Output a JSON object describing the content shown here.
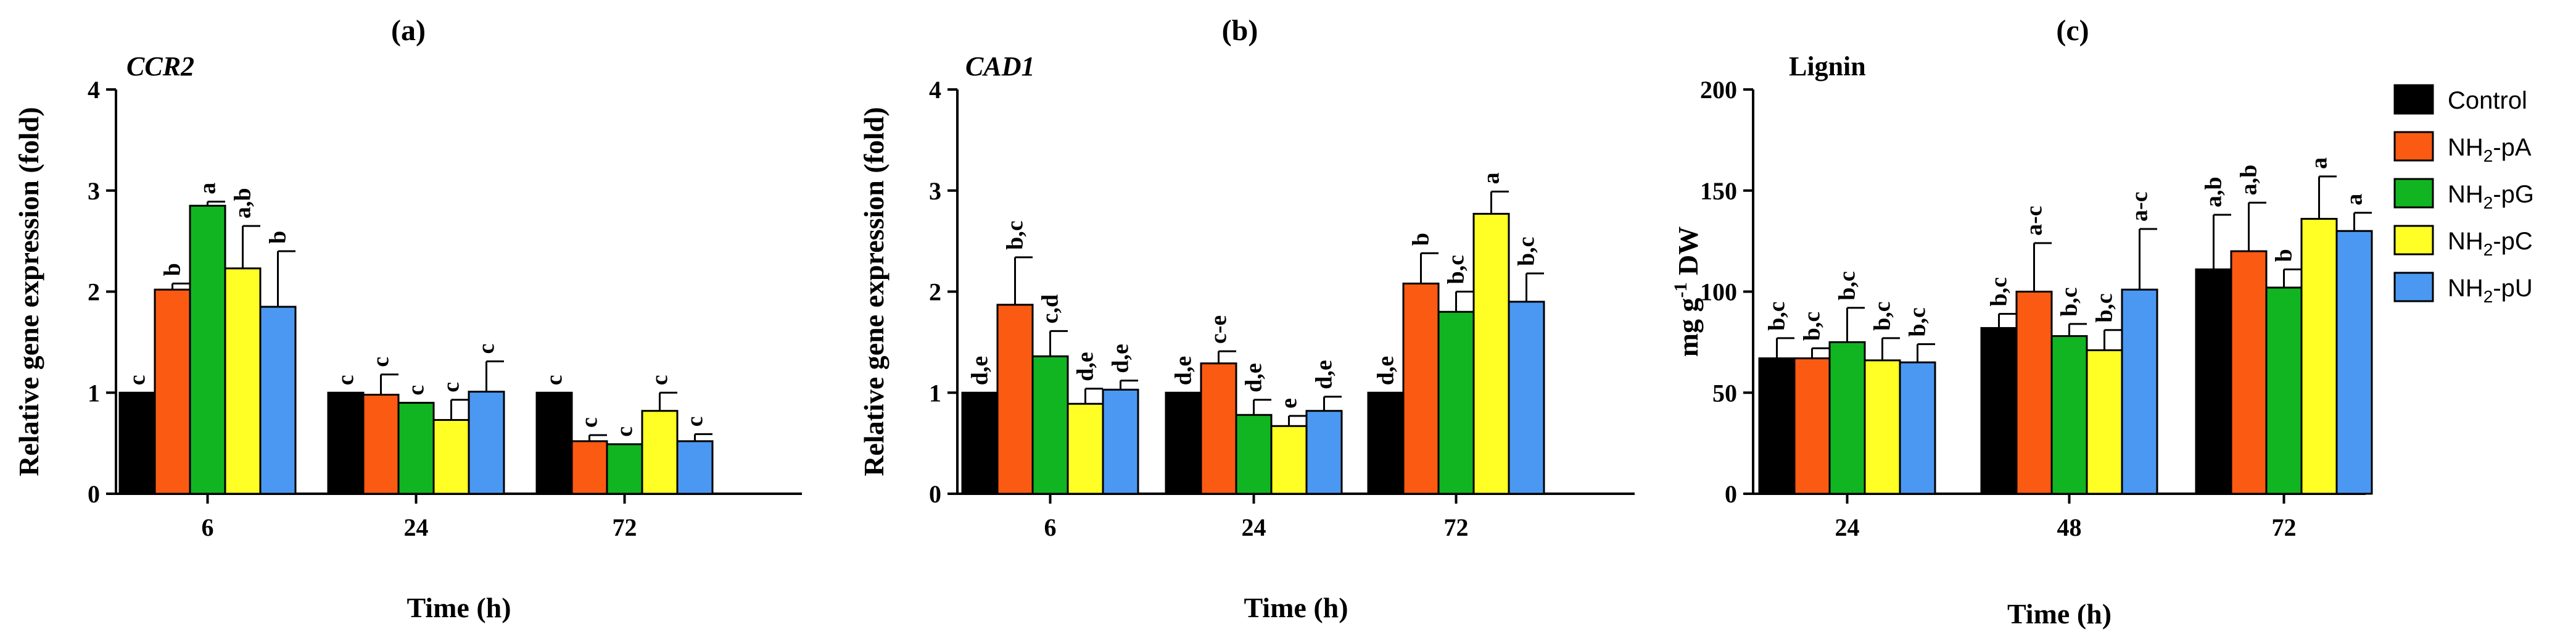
{
  "chart_data": [
    {
      "type": "bar",
      "panel_label": "(a)",
      "gene": "CCR2",
      "gene_italic": true,
      "xlabel": "Time (h)",
      "ylabel": "Relative gene expression (fold)",
      "ylim": [
        0,
        4
      ],
      "yticks": [
        0,
        1,
        2,
        3,
        4
      ],
      "categories": [
        "6",
        "24",
        "72"
      ],
      "series": [
        {
          "name": "Control",
          "values": [
            1.0,
            1.0,
            1.0
          ],
          "errors": [
            0,
            0,
            0
          ],
          "letters": [
            "c",
            "c",
            "c"
          ]
        },
        {
          "name": "NH2-pA",
          "values": [
            2.02,
            0.98,
            0.52
          ],
          "errors": [
            0.06,
            0.2,
            0.06
          ],
          "letters": [
            "b",
            "c",
            "c"
          ]
        },
        {
          "name": "NH2-pG",
          "values": [
            2.85,
            0.9,
            0.49
          ],
          "errors": [
            0.04,
            0,
            0
          ],
          "letters": [
            "a",
            "c",
            "c"
          ]
        },
        {
          "name": "NH2-pC",
          "values": [
            2.23,
            0.73,
            0.82
          ],
          "errors": [
            0.42,
            0.2,
            0.18
          ],
          "letters": [
            "a,b",
            "c",
            "c"
          ]
        },
        {
          "name": "NH2-pU",
          "values": [
            1.85,
            1.01,
            0.52
          ],
          "errors": [
            0.55,
            0.3,
            0.07
          ],
          "letters": [
            "b",
            "c",
            "c"
          ]
        }
      ]
    },
    {
      "type": "bar",
      "panel_label": "(b)",
      "gene": "CAD1",
      "gene_italic": true,
      "xlabel": "Time (h)",
      "ylabel": "Relative gene expression (fold)",
      "ylim": [
        0,
        4
      ],
      "yticks": [
        0,
        1,
        2,
        3,
        4
      ],
      "categories": [
        "6",
        "24",
        "72"
      ],
      "series": [
        {
          "name": "Control",
          "values": [
            1.0,
            1.0,
            1.0
          ],
          "errors": [
            0,
            0,
            0
          ],
          "letters": [
            "d,e",
            "d,e",
            "d,e"
          ]
        },
        {
          "name": "NH2-pA",
          "values": [
            1.87,
            1.29,
            2.08
          ],
          "errors": [
            0.47,
            0.12,
            0.3
          ],
          "letters": [
            "b,c",
            "c-e",
            "b"
          ]
        },
        {
          "name": "NH2-pG",
          "values": [
            1.36,
            0.78,
            1.8
          ],
          "errors": [
            0.25,
            0.15,
            0.2
          ],
          "letters": [
            "c,d",
            "d,e",
            "b,c"
          ]
        },
        {
          "name": "NH2-pC",
          "values": [
            0.89,
            0.67,
            2.77
          ],
          "errors": [
            0.15,
            0.1,
            0.22
          ],
          "letters": [
            "d,e",
            "e",
            "a"
          ]
        },
        {
          "name": "NH2-pU",
          "values": [
            1.03,
            0.82,
            1.9
          ],
          "errors": [
            0.09,
            0.14,
            0.28
          ],
          "letters": [
            "d,e",
            "d,e",
            "b,c"
          ]
        }
      ]
    },
    {
      "type": "bar",
      "panel_label": "(c)",
      "gene": "Lignin",
      "gene_italic": false,
      "xlabel": "Time (h)",
      "ylabel": "mg g-1 DW",
      "ylabel_parts": {
        "main": "mg g",
        "sup": "-1",
        "tail": " DW"
      },
      "ylim": [
        0,
        200
      ],
      "yticks": [
        0,
        50,
        100,
        150,
        200
      ],
      "categories": [
        "24",
        "48",
        "72"
      ],
      "series": [
        {
          "name": "Control",
          "values": [
            67,
            82,
            111
          ],
          "errors": [
            10,
            7,
            27
          ],
          "letters": [
            "b,c",
            "b,c",
            "a,b"
          ]
        },
        {
          "name": "NH2-pA",
          "values": [
            67,
            100,
            120
          ],
          "errors": [
            5,
            24,
            24
          ],
          "letters": [
            "b,c",
            "a-c",
            "a,b"
          ]
        },
        {
          "name": "NH2-pG",
          "values": [
            75,
            78,
            102
          ],
          "errors": [
            17,
            6,
            9
          ],
          "letters": [
            "b,c",
            "b,c",
            "b"
          ]
        },
        {
          "name": "NH2-pC",
          "values": [
            66,
            71,
            136
          ],
          "errors": [
            11,
            10,
            21
          ],
          "letters": [
            "b,c",
            "b,c",
            "a"
          ]
        },
        {
          "name": "NH2-pU",
          "values": [
            65,
            101,
            130
          ],
          "errors": [
            9,
            30,
            9
          ],
          "letters": [
            "b,c",
            "a-c",
            "a"
          ]
        }
      ]
    }
  ],
  "legend": {
    "position": "right",
    "entries": [
      {
        "label": "Control",
        "prefix": "Control",
        "sub": "",
        "suffix": ""
      },
      {
        "label": "NH2-pA",
        "prefix": "NH",
        "sub": "2",
        "suffix": "-pA"
      },
      {
        "label": "NH2-pG",
        "prefix": "NH",
        "sub": "2",
        "suffix": "-pG"
      },
      {
        "label": "NH2-pC",
        "prefix": "NH",
        "sub": "2",
        "suffix": "-pC"
      },
      {
        "label": "NH2-pU",
        "prefix": "NH",
        "sub": "2",
        "suffix": "-pU"
      }
    ]
  },
  "colors": {
    "Control": "#000000",
    "NH2-pA": "#fb5a12",
    "NH2-pG": "#11b521",
    "NH2-pC": "#ffff26",
    "NH2-pU": "#4b98f2"
  }
}
